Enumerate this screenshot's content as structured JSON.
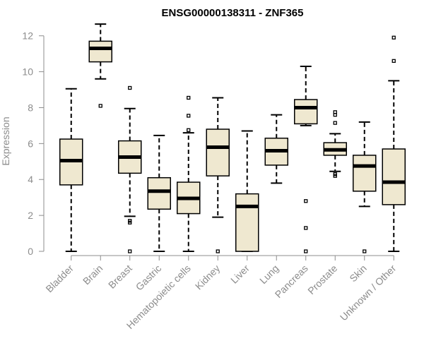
{
  "chart_data": {
    "type": "boxplot",
    "title": "ENSG00000138311 - ZNF365",
    "xlabel": "",
    "ylabel": "Expression",
    "ylim": [
      0,
      12.5
    ],
    "yticks": [
      0,
      2,
      4,
      6,
      8,
      10,
      12
    ],
    "box_fill": "#efe8d0",
    "box_stroke": "#000000",
    "axis_color": "#8c8c8c",
    "categories": [
      "Bladder",
      "Brain",
      "Breast",
      "Gastric",
      "Hematopoietic cells",
      "Kidney",
      "Liver",
      "Lung",
      "Pancreas",
      "Prostate",
      "Skin",
      "Unknown / Other"
    ],
    "boxes": [
      {
        "category": "Bladder",
        "q1": 3.7,
        "median": 5.05,
        "q3": 6.25,
        "whisker_low": 0.0,
        "whisker_high": 9.05,
        "outliers": []
      },
      {
        "category": "Brain",
        "q1": 10.55,
        "median": 11.3,
        "q3": 11.7,
        "whisker_low": 9.6,
        "whisker_high": 12.65,
        "outliers": [
          8.1
        ]
      },
      {
        "category": "Breast",
        "q1": 4.35,
        "median": 5.25,
        "q3": 6.15,
        "whisker_low": 1.95,
        "whisker_high": 7.95,
        "outliers": [
          9.1,
          1.7,
          1.6,
          0.0
        ]
      },
      {
        "category": "Gastric",
        "q1": 2.35,
        "median": 3.35,
        "q3": 4.1,
        "whisker_low": 0.0,
        "whisker_high": 6.45,
        "outliers": []
      },
      {
        "category": "Hematopoietic cells",
        "q1": 2.1,
        "median": 2.95,
        "q3": 3.85,
        "whisker_low": 0.0,
        "whisker_high": 6.6,
        "outliers": [
          8.55,
          7.55,
          6.75
        ]
      },
      {
        "category": "Kidney",
        "q1": 4.2,
        "median": 5.8,
        "q3": 6.8,
        "whisker_low": 1.9,
        "whisker_high": 8.55,
        "outliers": [
          0.0
        ]
      },
      {
        "category": "Liver",
        "q1": 0.0,
        "median": 2.5,
        "q3": 3.2,
        "whisker_low": 0.0,
        "whisker_high": 6.7,
        "outliers": []
      },
      {
        "category": "Lung",
        "q1": 4.8,
        "median": 5.6,
        "q3": 6.3,
        "whisker_low": 3.8,
        "whisker_high": 7.6,
        "outliers": []
      },
      {
        "category": "Pancreas",
        "q1": 7.1,
        "median": 8.0,
        "q3": 8.45,
        "whisker_low": 7.0,
        "whisker_high": 10.3,
        "outliers": [
          2.8,
          1.3,
          0.0
        ]
      },
      {
        "category": "Prostate",
        "q1": 5.35,
        "median": 5.65,
        "q3": 6.05,
        "whisker_low": 4.45,
        "whisker_high": 6.55,
        "outliers": [
          7.75,
          7.6,
          7.15,
          4.3,
          4.2
        ]
      },
      {
        "category": "Skin",
        "q1": 3.35,
        "median": 4.75,
        "q3": 5.35,
        "whisker_low": 2.5,
        "whisker_high": 7.2,
        "outliers": [
          0.0
        ]
      },
      {
        "category": "Unknown / Other",
        "q1": 2.6,
        "median": 3.85,
        "q3": 5.7,
        "whisker_low": 0.0,
        "whisker_high": 9.5,
        "outliers": [
          11.9,
          10.6
        ]
      }
    ]
  }
}
